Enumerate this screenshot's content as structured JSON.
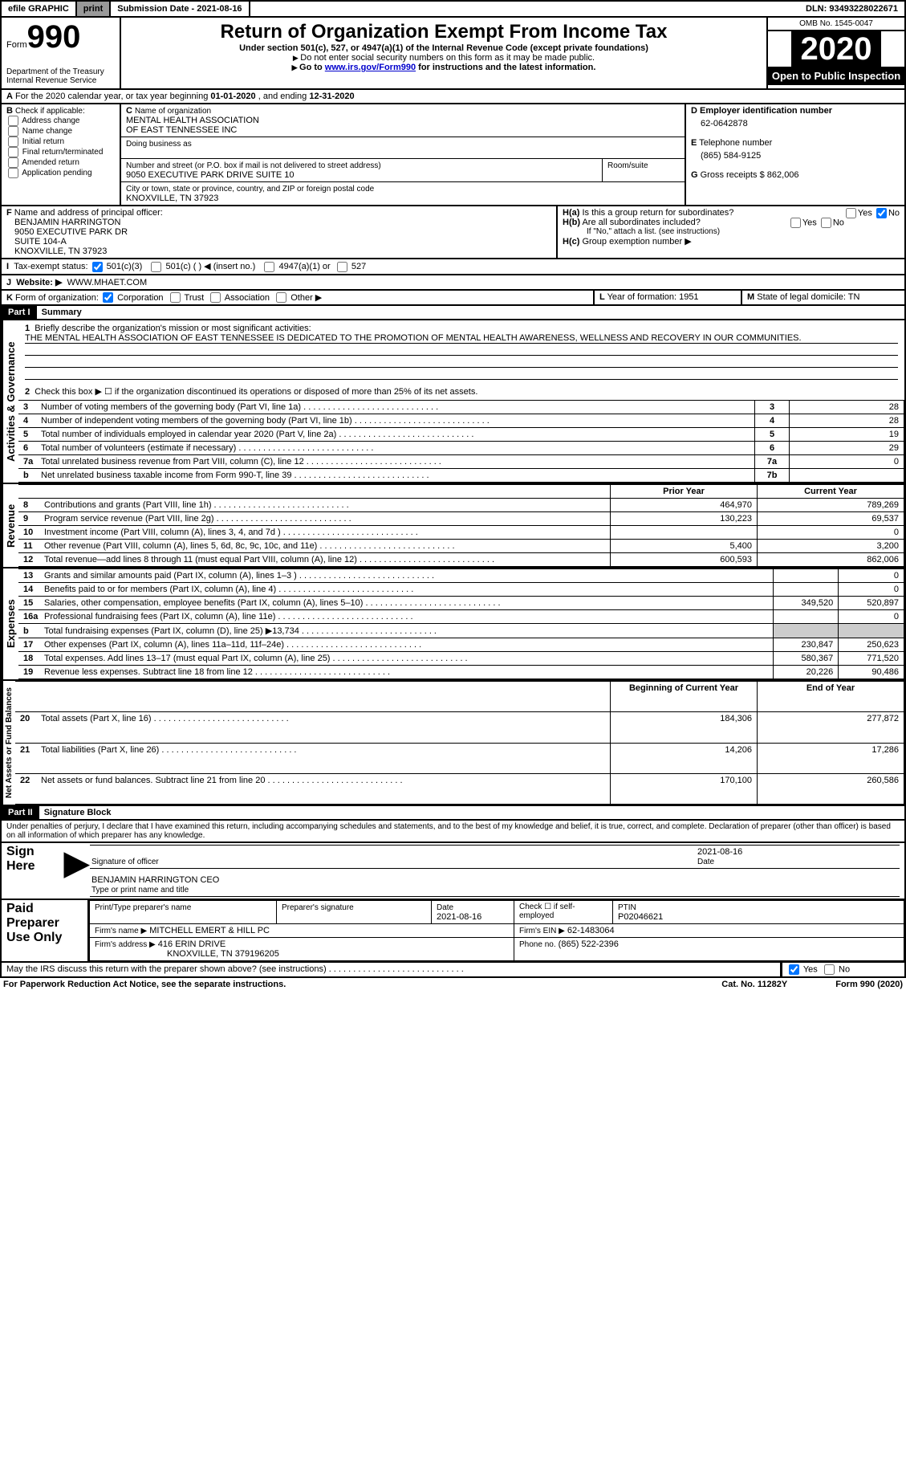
{
  "topbar": {
    "efile": "efile GRAPHIC",
    "print": "print",
    "subdate_lbl": "Submission Date - ",
    "subdate": "2021-08-16",
    "dln_lbl": "DLN: ",
    "dln": "93493228022671"
  },
  "hdr": {
    "form_lbl": "Form",
    "form_num": "990",
    "dept": "Department of the Treasury",
    "irs": "Internal Revenue Service",
    "title": "Return of Organization Exempt From Income Tax",
    "subtitle": "Under section 501(c), 527, or 4947(a)(1) of the Internal Revenue Code (except private foundations)",
    "nossn": "Do not enter social security numbers on this form as it may be made public.",
    "goto_pre": "Go to ",
    "goto_link": "www.irs.gov/Form990",
    "goto_post": " for instructions and the latest information.",
    "omb": "OMB No. 1545-0047",
    "year": "2020",
    "inspection": "Open to Public Inspection"
  },
  "lineA": {
    "pre": "For the 2020 calendar year, or tax year beginning ",
    "begin": "01-01-2020",
    "mid": " , and ending ",
    "end": "12-31-2020"
  },
  "B": {
    "hdr": "Check if applicable:",
    "items": [
      "Address change",
      "Name change",
      "Initial return",
      "Final return/terminated",
      "Amended return",
      "Application pending"
    ]
  },
  "C": {
    "name_lbl": "Name of organization",
    "name1": "MENTAL HEALTH ASSOCIATION",
    "name2": "OF EAST TENNESSEE INC",
    "dba_lbl": "Doing business as",
    "addr_lbl": "Number and street (or P.O. box if mail is not delivered to street address)",
    "room_lbl": "Room/suite",
    "addr": "9050 EXECUTIVE PARK DRIVE SUITE 10",
    "city_lbl": "City or town, state or province, country, and ZIP or foreign postal code",
    "city": "KNOXVILLE, TN  37923"
  },
  "D": {
    "lbl": "Employer identification number",
    "val": "62-0642878"
  },
  "E": {
    "lbl": "Telephone number",
    "val": "(865) 584-9125"
  },
  "G": {
    "lbl": "Gross receipts $",
    "val": "862,006"
  },
  "F": {
    "lbl": "Name and address of principal officer:",
    "lines": [
      "BENJAMIN HARRINGTON",
      "9050 EXECUTIVE PARK DR",
      "SUITE 104-A",
      "KNOXVILLE, TN  37923"
    ]
  },
  "H": {
    "a": "Is this a group return for subordinates?",
    "b": "Are all subordinates included?",
    "c_pre": "If \"No,\" attach a list. (see instructions)",
    "c": "Group exemption number ▶",
    "yes": "Yes",
    "no": "No"
  },
  "I": {
    "lbl": "Tax-exempt status:",
    "501c3": "501(c)(3)",
    "501c": "501(c) (  ) ◀ (insert no.)",
    "4947": "4947(a)(1) or",
    "527": "527"
  },
  "J": {
    "lbl": "Website: ▶",
    "val": "WWW.MHAET.COM"
  },
  "K": {
    "lbl": "Form of organization:",
    "corp": "Corporation",
    "trust": "Trust",
    "assoc": "Association",
    "other": "Other ▶"
  },
  "L": {
    "lbl": "Year of formation:",
    "val": "1951"
  },
  "M": {
    "lbl": "State of legal domicile:",
    "val": "TN"
  },
  "part1": {
    "hdr": "Part I",
    "title": "Summary",
    "q1_lbl": "Briefly describe the organization's mission or most significant activities:",
    "q1_val": "THE MENTAL HEALTH ASSOCIATION OF EAST TENNESSEE IS DEDICATED TO THE PROMOTION OF MENTAL HEALTH AWARENESS, WELLNESS AND RECOVERY IN OUR COMMUNITIES.",
    "q2": "Check this box ▶ ☐ if the organization discontinued its operations or disposed of more than 25% of its net assets.",
    "lines": [
      {
        "n": "3",
        "t": "Number of voting members of the governing body (Part VI, line 1a)",
        "box": "3",
        "v": "28"
      },
      {
        "n": "4",
        "t": "Number of independent voting members of the governing body (Part VI, line 1b)",
        "box": "4",
        "v": "28"
      },
      {
        "n": "5",
        "t": "Total number of individuals employed in calendar year 2020 (Part V, line 2a)",
        "box": "5",
        "v": "19"
      },
      {
        "n": "6",
        "t": "Total number of volunteers (estimate if necessary)",
        "box": "6",
        "v": "29"
      },
      {
        "n": "7a",
        "t": "Total unrelated business revenue from Part VIII, column (C), line 12",
        "box": "7a",
        "v": "0"
      },
      {
        "n": "b",
        "t": "Net unrelated business taxable income from Form 990-T, line 39",
        "box": "7b",
        "v": ""
      }
    ],
    "col_prior": "Prior Year",
    "col_curr": "Current Year",
    "rev": [
      {
        "n": "8",
        "t": "Contributions and grants (Part VIII, line 1h)",
        "p": "464,970",
        "c": "789,269"
      },
      {
        "n": "9",
        "t": "Program service revenue (Part VIII, line 2g)",
        "p": "130,223",
        "c": "69,537"
      },
      {
        "n": "10",
        "t": "Investment income (Part VIII, column (A), lines 3, 4, and 7d )",
        "p": "",
        "c": "0"
      },
      {
        "n": "11",
        "t": "Other revenue (Part VIII, column (A), lines 5, 6d, 8c, 9c, 10c, and 11e)",
        "p": "5,400",
        "c": "3,200"
      },
      {
        "n": "12",
        "t": "Total revenue—add lines 8 through 11 (must equal Part VIII, column (A), line 12)",
        "p": "600,593",
        "c": "862,006"
      }
    ],
    "exp": [
      {
        "n": "13",
        "t": "Grants and similar amounts paid (Part IX, column (A), lines 1–3 )",
        "p": "",
        "c": "0"
      },
      {
        "n": "14",
        "t": "Benefits paid to or for members (Part IX, column (A), line 4)",
        "p": "",
        "c": "0"
      },
      {
        "n": "15",
        "t": "Salaries, other compensation, employee benefits (Part IX, column (A), lines 5–10)",
        "p": "349,520",
        "c": "520,897"
      },
      {
        "n": "16a",
        "t": "Professional fundraising fees (Part IX, column (A), line 11e)",
        "p": "",
        "c": "0"
      },
      {
        "n": "b",
        "t": "Total fundraising expenses (Part IX, column (D), line 25) ▶13,734",
        "p": "GRAY",
        "c": "GRAY"
      },
      {
        "n": "17",
        "t": "Other expenses (Part IX, column (A), lines 11a–11d, 11f–24e)",
        "p": "230,847",
        "c": "250,623"
      },
      {
        "n": "18",
        "t": "Total expenses. Add lines 13–17 (must equal Part IX, column (A), line 25)",
        "p": "580,367",
        "c": "771,520"
      },
      {
        "n": "19",
        "t": "Revenue less expenses. Subtract line 18 from line 12",
        "p": "20,226",
        "c": "90,486"
      }
    ],
    "col_boy": "Beginning of Current Year",
    "col_eoy": "End of Year",
    "bal": [
      {
        "n": "20",
        "t": "Total assets (Part X, line 16)",
        "p": "184,306",
        "c": "277,872"
      },
      {
        "n": "21",
        "t": "Total liabilities (Part X, line 26)",
        "p": "14,206",
        "c": "17,286"
      },
      {
        "n": "22",
        "t": "Net assets or fund balances. Subtract line 21 from line 20",
        "p": "170,100",
        "c": "260,586"
      }
    ],
    "side_gov": "Activities & Governance",
    "side_rev": "Revenue",
    "side_exp": "Expenses",
    "side_bal": "Net Assets or Fund Balances"
  },
  "part2": {
    "hdr": "Part II",
    "title": "Signature Block",
    "perjury": "Under penalties of perjury, I declare that I have examined this return, including accompanying schedules and statements, and to the best of my knowledge and belief, it is true, correct, and complete. Declaration of preparer (other than officer) is based on all information of which preparer has any knowledge.",
    "sign_here": "Sign Here",
    "sig_officer": "Signature of officer",
    "sig_date": "Date",
    "sig_date_val": "2021-08-16",
    "officer_name": "BENJAMIN HARRINGTON CEO",
    "officer_lbl": "Type or print name and title",
    "paid": "Paid Preparer Use Only",
    "prep_name_lbl": "Print/Type preparer's name",
    "prep_sig_lbl": "Preparer's signature",
    "prep_date_lbl": "Date",
    "prep_date": "2021-08-16",
    "self_emp": "Check ☐ if self-employed",
    "ptin_lbl": "PTIN",
    "ptin": "P02046621",
    "firm_name_lbl": "Firm's name   ▶",
    "firm_name": "MITCHELL EMERT & HILL PC",
    "firm_ein_lbl": "Firm's EIN ▶",
    "firm_ein": "62-1483064",
    "firm_addr_lbl": "Firm's address ▶",
    "firm_addr1": "416 ERIN DRIVE",
    "firm_addr2": "KNOXVILLE, TN  379196205",
    "firm_phone_lbl": "Phone no.",
    "firm_phone": "(865) 522-2396",
    "discuss": "May the IRS discuss this return with the preparer shown above? (see instructions)"
  },
  "footer": {
    "paperwork": "For Paperwork Reduction Act Notice, see the separate instructions.",
    "cat": "Cat. No. 11282Y",
    "form": "Form 990 (2020)"
  }
}
